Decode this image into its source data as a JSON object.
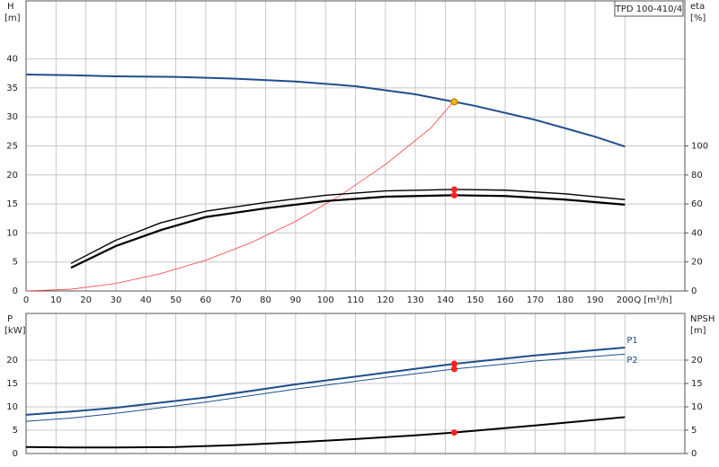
{
  "chart_data": [
    {
      "type": "line",
      "label": "TPD 100-410/4",
      "ylabel": "H",
      "yunit": "[m]",
      "y2label": "eta",
      "y2unit": "[%]",
      "xlabel": "Q [m³/h]",
      "xlim": [
        0,
        220
      ],
      "ylim": [
        0,
        50
      ],
      "y2lim": [
        0,
        200
      ],
      "xticks": [
        0,
        10,
        20,
        30,
        40,
        50,
        60,
        70,
        80,
        90,
        100,
        110,
        120,
        130,
        140,
        150,
        160,
        170,
        180,
        190,
        200
      ],
      "yticks": [
        0,
        5,
        10,
        15,
        20,
        25,
        30,
        35,
        40
      ],
      "y2ticks": [
        0,
        20,
        40,
        60,
        80,
        100
      ],
      "grid": true,
      "series": [
        {
          "color": "#1f4e8c",
          "width": 2,
          "axis": "y",
          "x": [
            0,
            15,
            30,
            50,
            70,
            90,
            110,
            130,
            143,
            150,
            170,
            190,
            200
          ],
          "values": [
            37.3,
            37.2,
            37.0,
            36.9,
            36.6,
            36.1,
            35.3,
            33.9,
            32.6,
            31.9,
            29.5,
            26.6,
            24.9
          ]
        },
        {
          "color": "#ff3b3b",
          "width": 0.8,
          "axis": "y",
          "x": [
            0,
            15,
            30,
            45,
            60,
            75,
            90,
            105,
            120,
            135,
            143
          ],
          "values": [
            0,
            0.3,
            1.3,
            3,
            5.3,
            8.3,
            12,
            16.5,
            21.8,
            28,
            32.8
          ]
        },
        {
          "color": "#000000",
          "width": 1.4,
          "axis": "y2",
          "x": [
            15,
            30,
            45,
            60,
            80,
            100,
            120,
            143,
            160,
            180,
            200
          ],
          "values": [
            19,
            35,
            47,
            55,
            61,
            66,
            69,
            70,
            69.5,
            67,
            63
          ]
        },
        {
          "color": "#000000",
          "width": 2.2,
          "axis": "y2",
          "x": [
            15,
            30,
            45,
            60,
            80,
            100,
            120,
            143,
            160,
            180,
            200
          ],
          "values": [
            16,
            31,
            42,
            51,
            57,
            62,
            65,
            66,
            65.5,
            63,
            59.5
          ]
        }
      ],
      "points": [
        {
          "x": 143,
          "y": 32.6,
          "axis": "y",
          "color": "#f5b800"
        },
        {
          "x": 143,
          "y": 70,
          "axis": "y2",
          "color": "#ff2020"
        },
        {
          "x": 143,
          "y": 66,
          "axis": "y2",
          "color": "#ff2020"
        }
      ]
    },
    {
      "type": "line",
      "ylabel": "P",
      "yunit": "[kW]",
      "y2label": "NPSH",
      "y2unit": "[m]",
      "xlim": [
        0,
        220
      ],
      "ylim": [
        0,
        30
      ],
      "y2lim": [
        0,
        30
      ],
      "xticks": [
        0,
        10,
        20,
        30,
        40,
        50,
        60,
        70,
        80,
        90,
        100,
        110,
        120,
        130,
        140,
        150,
        160,
        170,
        180,
        190,
        200
      ],
      "yticks": [
        0,
        5,
        10,
        15,
        20
      ],
      "y2ticks": [
        0,
        5,
        10,
        15,
        20
      ],
      "grid": true,
      "series": [
        {
          "name": "P1",
          "color": "#1f4e8c",
          "width": 2,
          "axis": "y",
          "x": [
            0,
            15,
            30,
            60,
            90,
            120,
            143,
            170,
            200
          ],
          "values": [
            8.3,
            9.0,
            9.8,
            12,
            14.8,
            17.3,
            19.2,
            21,
            22.7
          ]
        },
        {
          "name": "P2",
          "color": "#1f4e8c",
          "width": 1,
          "axis": "y",
          "x": [
            0,
            15,
            30,
            60,
            90,
            120,
            143,
            170,
            200
          ],
          "values": [
            6.9,
            7.6,
            8.6,
            11,
            13.8,
            16.3,
            18.1,
            19.8,
            21.3
          ]
        },
        {
          "color": "#000000",
          "width": 2,
          "axis": "y2",
          "x": [
            0,
            15,
            30,
            50,
            70,
            90,
            110,
            130,
            143,
            170,
            200
          ],
          "values": [
            1.4,
            1.3,
            1.3,
            1.4,
            1.8,
            2.4,
            3.1,
            3.9,
            4.5,
            6.0,
            7.8
          ]
        }
      ],
      "points": [
        {
          "x": 143,
          "y": 19.2,
          "axis": "y",
          "color": "#ff2020"
        },
        {
          "x": 143,
          "y": 18.1,
          "axis": "y",
          "color": "#ff2020"
        },
        {
          "x": 143,
          "y": 4.5,
          "axis": "y2",
          "color": "#ff2020"
        }
      ]
    }
  ]
}
